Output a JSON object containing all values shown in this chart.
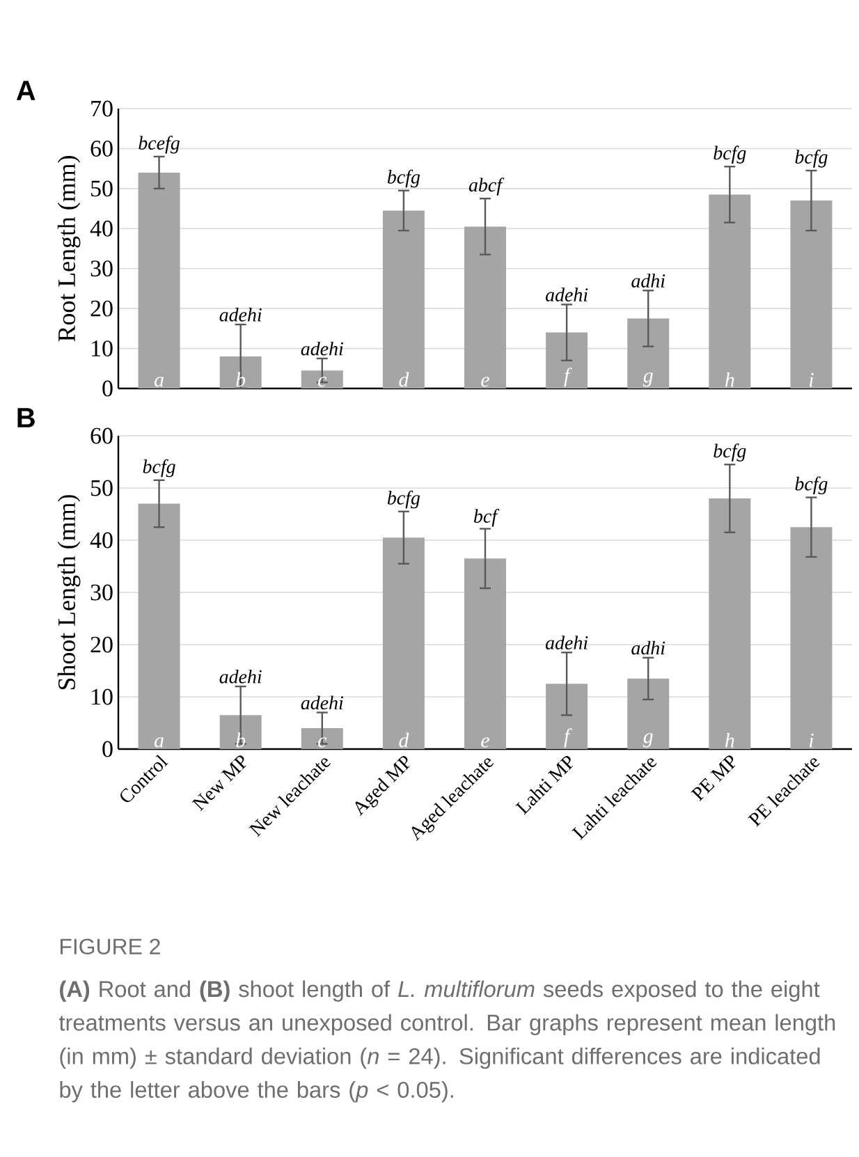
{
  "chart_data": [
    {
      "type": "bar",
      "title": "A",
      "ylabel": "Root Length (mm)",
      "categories": [
        "Control",
        "New MP",
        "New leachate",
        "Aged MP",
        "Aged leachate",
        "Lahti MP",
        "Lahti leachate",
        "PE MP",
        "PE leachate"
      ],
      "values": [
        54,
        8,
        4.5,
        44.5,
        40.5,
        14,
        17.5,
        48.5,
        47
      ],
      "errors": [
        4,
        8,
        3,
        5,
        7,
        7,
        7,
        7,
        7.5
      ],
      "color": "#a5a5a5",
      "ylim": [
        0,
        70
      ],
      "yticks": [
        0,
        10,
        20,
        30,
        40,
        50,
        60,
        70
      ],
      "grid": "y",
      "tick_labels": "y",
      "annotations": [
        {
          "text": "bcefg",
          "x": "Control",
          "y": 58
        },
        {
          "text": "adehi",
          "x": "New MP",
          "y": 16
        },
        {
          "text": "adehi",
          "x": "New leachate",
          "y": 7.5
        },
        {
          "text": "bcfg",
          "x": "Aged MP",
          "y": 49.5
        },
        {
          "text": "abcf",
          "x": "Aged leachate",
          "y": 47.5
        },
        {
          "text": "adehi",
          "x": "Lahti MP",
          "y": 21
        },
        {
          "text": "adhi",
          "x": "Lahti leachate",
          "y": 24.5
        },
        {
          "text": "bcfg",
          "x": "PE MP",
          "y": 55.5
        },
        {
          "text": "bcfg",
          "x": "PE leachate",
          "y": 54.5
        },
        {
          "text": "a",
          "x": "Control",
          "y": 0
        },
        {
          "text": "b",
          "x": "New MP",
          "y": 0
        },
        {
          "text": "c",
          "x": "New leachate",
          "y": 0
        },
        {
          "text": "d",
          "x": "Aged MP",
          "y": 0
        },
        {
          "text": "e",
          "x": "Aged leachate",
          "y": 0
        },
        {
          "text": "f",
          "x": "Lahti MP",
          "y": 0
        },
        {
          "text": "g",
          "x": "Lahti leachate",
          "y": 0
        },
        {
          "text": "h",
          "x": "PE MP",
          "y": 0
        },
        {
          "text": "i",
          "x": "PE leachate",
          "y": 0
        }
      ]
    },
    {
      "type": "bar",
      "title": "B",
      "ylabel": "Shoot Length (mm)",
      "categories": [
        "Control",
        "New MP",
        "New leachate",
        "Aged MP",
        "Aged leachate",
        "Lahti MP",
        "Lahti leachate",
        "PE MP",
        "PE leachate"
      ],
      "values": [
        47,
        6.5,
        4,
        40.5,
        36.5,
        12.5,
        13.5,
        48,
        42.5
      ],
      "errors": [
        4.5,
        5.5,
        3,
        5,
        5.7,
        6,
        4,
        6.5,
        5.7
      ],
      "color": "#a5a5a5",
      "ylim": [
        0,
        60
      ],
      "yticks": [
        0,
        10,
        20,
        30,
        40,
        50,
        60
      ],
      "grid": "y",
      "annotations": [
        {
          "text": "bcfg",
          "x": "Control",
          "y": 51.5
        },
        {
          "text": "adehi",
          "x": "New MP",
          "y": 12
        },
        {
          "text": "adehi",
          "x": "New leachate",
          "y": 7
        },
        {
          "text": "bcfg",
          "x": "Aged MP",
          "y": 45.5
        },
        {
          "text": "bcf",
          "x": "Aged leachate",
          "y": 42
        },
        {
          "text": "adehi",
          "x": "Lahti MP",
          "y": 18.5
        },
        {
          "text": "adhi",
          "x": "Lahti leachate",
          "y": 17.5
        },
        {
          "text": "bcfg",
          "x": "PE MP",
          "y": 54.5
        },
        {
          "text": "bcfg",
          "x": "PE leachate",
          "y": 48.2
        },
        {
          "text": "a",
          "x": "Control",
          "y": 0
        },
        {
          "text": "b",
          "x": "New MP",
          "y": 0
        },
        {
          "text": "c",
          "x": "New leachate",
          "y": 0
        },
        {
          "text": "d",
          "x": "Aged MP",
          "y": 0
        },
        {
          "text": "e",
          "x": "Aged leachate",
          "y": 0
        },
        {
          "text": "f",
          "x": "Lahti MP",
          "y": 0
        },
        {
          "text": "g",
          "x": "Lahti leachate",
          "y": 0
        },
        {
          "text": "h",
          "x": "PE MP",
          "y": 0
        },
        {
          "text": "i",
          "x": "PE leachate",
          "y": 0
        },
        "FIGURE 2",
        "**(A)** Root and **(B)** shoot length of *L. multiflorum* seeds exposed to the eight treatments versus an unexposed control. Bar graphs represent mean length (in mm) ± standard deviation (*n* = 24). Significant differences are indicated by the letter above the bars (*p* < 0.05)."
      ]
    }
  ]
}
